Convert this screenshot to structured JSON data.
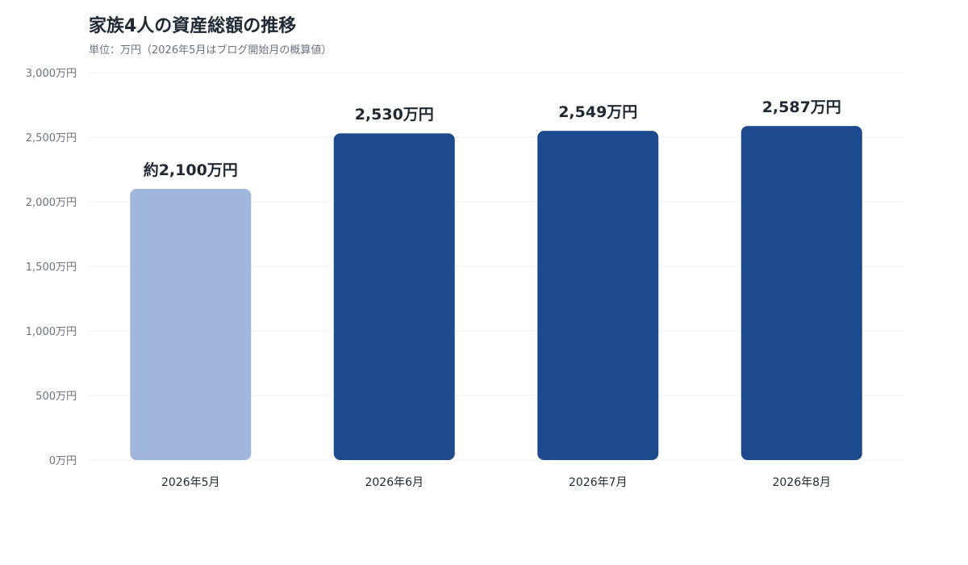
{
  "chart_data": {
    "type": "bar",
    "title": "家族4人の資産総額の推移",
    "subtitle": "単位：万円（2026年5月はブログ開始月の概算値）",
    "categories": [
      "2026年5月",
      "2026年6月",
      "2026年7月",
      "2026年8月"
    ],
    "values": [
      2100,
      2530,
      2549,
      2587
    ],
    "value_labels": [
      "約2,100万円",
      "2,530万円",
      "2,549万円",
      "2,587万円"
    ],
    "ylim": [
      0,
      3000
    ],
    "y_ticks": [
      0,
      500,
      1000,
      1500,
      2000,
      2500,
      3000
    ],
    "y_tick_labels": [
      "0万円",
      "500万円",
      "1,000万円",
      "1,500万円",
      "2,000万円",
      "2,500万円",
      "3,000万円"
    ],
    "grid": true,
    "legend": "none",
    "colors": [
      "#a0b6dc",
      "#1c4a8c",
      "#1c4a8c",
      "#1c4a8c"
    ]
  }
}
